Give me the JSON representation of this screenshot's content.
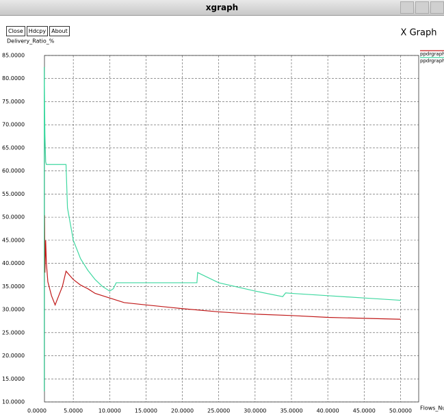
{
  "window": {
    "title": "xgraph",
    "buttons": [
      "Close",
      "Hdcpy",
      "About"
    ]
  },
  "chart_data": {
    "type": "line",
    "title": "X Graph",
    "y_label": "Delivery_Ratio_%",
    "x_label": "Flows_Numb",
    "xlim": [
      0,
      52.5
    ],
    "ylim": [
      10,
      85
    ],
    "xticks": [
      {
        "value": 0,
        "label": "0.0000"
      },
      {
        "value": 5,
        "label": "5.0000"
      },
      {
        "value": 10,
        "label": "10.0000"
      },
      {
        "value": 15,
        "label": "15.0000"
      },
      {
        "value": 20,
        "label": "20.0000"
      },
      {
        "value": 25,
        "label": "25.0000"
      },
      {
        "value": 30,
        "label": "30.0000"
      },
      {
        "value": 35,
        "label": "35.0000"
      },
      {
        "value": 40,
        "label": "40.0000"
      },
      {
        "value": 45,
        "label": "45.0000"
      },
      {
        "value": 50,
        "label": "50.0000"
      }
    ],
    "yticks": [
      {
        "value": 85,
        "label": "85.0000"
      },
      {
        "value": 80,
        "label": "80.0000"
      },
      {
        "value": 75,
        "label": "75.0000"
      },
      {
        "value": 70,
        "label": "70.0000"
      },
      {
        "value": 65,
        "label": "65.0000"
      },
      {
        "value": 60,
        "label": "60.0000"
      },
      {
        "value": 55,
        "label": "55.0000"
      },
      {
        "value": 50,
        "label": "50.0000"
      },
      {
        "value": 45,
        "label": "45.0000"
      },
      {
        "value": 40,
        "label": "40.0000"
      },
      {
        "value": 35,
        "label": "35.0000"
      },
      {
        "value": 30,
        "label": "30.0000"
      },
      {
        "value": 25,
        "label": "25.0000"
      },
      {
        "value": 20,
        "label": "20.0000"
      },
      {
        "value": 15,
        "label": "15.0000"
      },
      {
        "value": 10,
        "label": "10.0000"
      }
    ],
    "grid": true,
    "series": [
      {
        "name": "ppdrgraph",
        "color": "#c01818",
        "x": [
          1.0,
          1.05,
          1.1,
          1.2,
          1.3,
          1.5,
          2.0,
          2.5,
          3.0,
          3.5,
          4.0,
          5.0,
          6.0,
          7.0,
          8.0,
          10.0,
          12.0,
          15.0,
          20.0,
          25.0,
          30.0,
          35.0,
          40.0,
          45.0,
          50.0
        ],
        "values": [
          36,
          50.4,
          38,
          45,
          40,
          36,
          33,
          31,
          33,
          35,
          38.3,
          36.5,
          35.3,
          34.5,
          33.5,
          32.5,
          31.5,
          31,
          30.2,
          29.5,
          29,
          28.7,
          28.3,
          28.1,
          27.9
        ]
      },
      {
        "name": "ppdrgraph",
        "color": "#3ed8a0",
        "x": [
          1.0,
          1.0,
          1.1,
          1.2,
          1.3,
          4.0,
          4.2,
          5.0,
          6.0,
          7.0,
          8.0,
          9.0,
          10.0,
          10.5,
          10.9,
          22.0,
          22.1,
          25.0,
          30.0,
          33.8,
          34.2,
          35.0,
          40.0,
          45.0,
          50.0
        ],
        "values": [
          12.3,
          82.5,
          68,
          62,
          61.4,
          61.4,
          52,
          45,
          41,
          38.5,
          36.5,
          35,
          34,
          34.5,
          35.8,
          35.8,
          38,
          35.8,
          34,
          32.8,
          33.6,
          33.5,
          33,
          32.5,
          32
        ]
      }
    ],
    "legend": "upper right"
  }
}
